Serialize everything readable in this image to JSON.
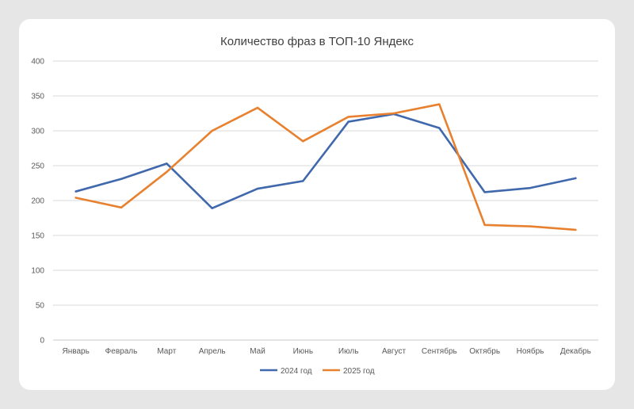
{
  "chart_data": {
    "type": "line",
    "title": "Количество фраз в ТОП-10 Яндекс",
    "categories": [
      "Январь",
      "Февраль",
      "Март",
      "Апрель",
      "Май",
      "Июнь",
      "Июль",
      "Август",
      "Сентябрь",
      "Октябрь",
      "Ноябрь",
      "Декабрь"
    ],
    "series": [
      {
        "name": "2024 год",
        "color": "#4068ad",
        "values": [
          213,
          231,
          253,
          189,
          217,
          228,
          313,
          324,
          304,
          212,
          218,
          232
        ]
      },
      {
        "name": "2025 год",
        "color": "#e8812f",
        "values": [
          204,
          190,
          241,
          300,
          333,
          285,
          320,
          325,
          338,
          165,
          163,
          158
        ]
      }
    ],
    "ylim": [
      0,
      400
    ],
    "yticks": [
      0,
      50,
      100,
      150,
      200,
      250,
      300,
      350,
      400
    ],
    "grid": true,
    "legend_position": "bottom"
  }
}
